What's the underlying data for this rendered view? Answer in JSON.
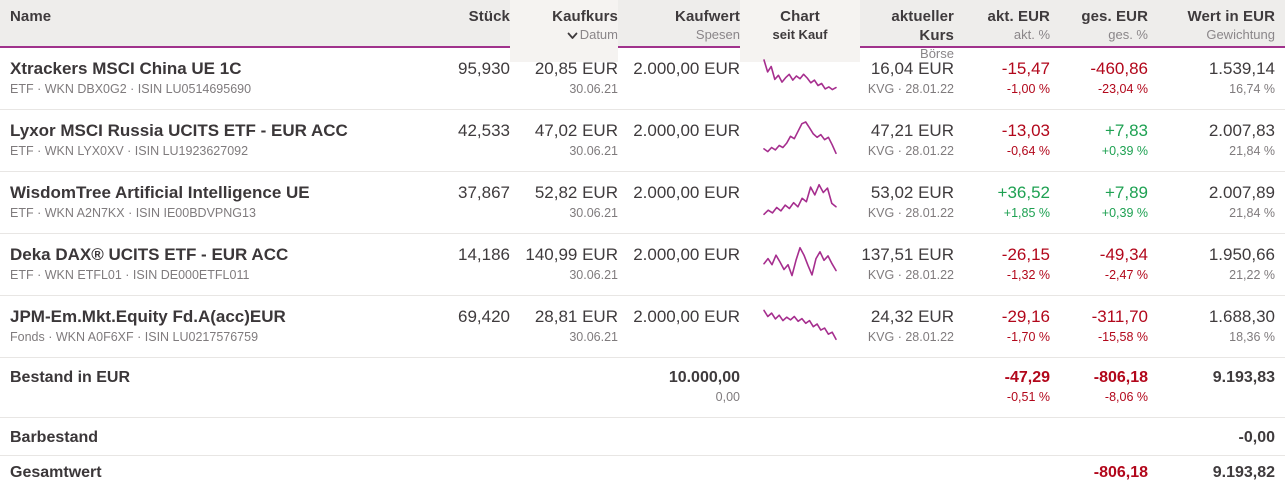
{
  "colors": {
    "accent_line": "#a0328c",
    "spark": "#a62e8e",
    "negative": "#b2071b",
    "positive": "#1ea152",
    "header_bg": "#eeedeb"
  },
  "header": {
    "columns": {
      "name": {
        "label": "Name",
        "sub": ""
      },
      "stueck": {
        "label": "Stück",
        "sub": ""
      },
      "kaufkurs": {
        "label": "Kaufkurs",
        "sub": "Datum",
        "sort_icon": "chevron-down"
      },
      "kaufwert": {
        "label": "Kaufwert",
        "sub": "Spesen"
      },
      "chart": {
        "label": "Chart",
        "sub": "seit Kauf"
      },
      "akt_kurs": {
        "label": "aktueller Kurs",
        "sub": "Börse"
      },
      "akt_eur": {
        "label": "akt. EUR",
        "sub": "akt. %"
      },
      "ges_eur": {
        "label": "ges. EUR",
        "sub": "ges. %"
      },
      "wert": {
        "label": "Wert in EUR",
        "sub": "Gewichtung"
      }
    }
  },
  "rows": [
    {
      "name": "Xtrackers MSCI China UE 1C",
      "details": "ETF · WKN DBX0G2 · ISIN LU0514695690",
      "stueck": "95,930",
      "kaufkurs": "20,85 EUR",
      "kauf_datum": "30.06.21",
      "kaufwert": "2.000,00 EUR",
      "akt_kurs": "16,04 EUR",
      "boerse": "KVG · 28.01.22",
      "akt_eur": "-15,47",
      "akt_pct": "-1,00 %",
      "akt_dir": "neg",
      "ges_eur": "-460,86",
      "ges_pct": "-23,04 %",
      "ges_dir": "neg",
      "wert": "1.539,14",
      "gewichtung": "16,74 %",
      "spark": [
        0.97,
        0.62,
        0.78,
        0.4,
        0.52,
        0.32,
        0.45,
        0.55,
        0.38,
        0.5,
        0.42,
        0.55,
        0.44,
        0.3,
        0.38,
        0.22,
        0.28,
        0.12,
        0.18,
        0.1,
        0.16
      ]
    },
    {
      "name": "Lyxor MSCI Russia UCITS ETF - EUR ACC",
      "details": "ETF · WKN LYX0XV · ISIN LU1923627092",
      "stueck": "42,533",
      "kaufkurs": "47,02 EUR",
      "kauf_datum": "30.06.21",
      "kaufwert": "2.000,00 EUR",
      "akt_kurs": "47,21 EUR",
      "boerse": "KVG · 28.01.22",
      "akt_eur": "-13,03",
      "akt_pct": "-0,64 %",
      "akt_dir": "neg",
      "ges_eur": "+7,83",
      "ges_pct": "+0,39 %",
      "ges_dir": "pos",
      "wert": "2.007,83",
      "gewichtung": "21,84 %",
      "spark": [
        0.18,
        0.1,
        0.22,
        0.15,
        0.28,
        0.22,
        0.35,
        0.55,
        0.48,
        0.7,
        0.92,
        0.97,
        0.8,
        0.62,
        0.52,
        0.6,
        0.45,
        0.52,
        0.3,
        0.05
      ]
    },
    {
      "name": "WisdomTree Artificial Intelligence UE",
      "details": "ETF · WKN A2N7KX · ISIN IE00BDVPNG13",
      "stueck": "37,867",
      "kaufkurs": "52,82 EUR",
      "kauf_datum": "30.06.21",
      "kaufwert": "2.000,00 EUR",
      "akt_kurs": "53,02 EUR",
      "boerse": "KVG · 28.01.22",
      "akt_eur": "+36,52",
      "akt_pct": "+1,85 %",
      "akt_dir": "pos",
      "ges_eur": "+7,89",
      "ges_pct": "+0,39 %",
      "ges_dir": "pos",
      "wert": "2.007,89",
      "gewichtung": "21,84 %",
      "spark": [
        0.08,
        0.2,
        0.12,
        0.28,
        0.18,
        0.35,
        0.25,
        0.42,
        0.3,
        0.55,
        0.45,
        0.88,
        0.65,
        0.95,
        0.72,
        0.85,
        0.4,
        0.3
      ]
    },
    {
      "name": "Deka DAX® UCITS ETF - EUR ACC",
      "details": "ETF · WKN ETFL01 · ISIN DE000ETFL011",
      "stueck": "14,186",
      "kaufkurs": "140,99 EUR",
      "kauf_datum": "30.06.21",
      "kaufwert": "2.000,00 EUR",
      "akt_kurs": "137,51 EUR",
      "boerse": "KVG · 28.01.22",
      "akt_eur": "-26,15",
      "akt_pct": "-1,32 %",
      "akt_dir": "neg",
      "ges_eur": "-49,34",
      "ges_pct": "-2,47 %",
      "ges_dir": "neg",
      "wert": "1.950,66",
      "gewichtung": "21,22 %",
      "spark": [
        0.45,
        0.6,
        0.42,
        0.7,
        0.5,
        0.28,
        0.42,
        0.1,
        0.55,
        0.92,
        0.7,
        0.4,
        0.12,
        0.6,
        0.8,
        0.55,
        0.68,
        0.45,
        0.25
      ]
    },
    {
      "name": "JPM-Em.Mkt.Equity Fd.A(acc)EUR",
      "details": "Fonds · WKN A0F6XF · ISIN LU0217576759",
      "stueck": "69,420",
      "kaufkurs": "28,81 EUR",
      "kauf_datum": "30.06.21",
      "kaufwert": "2.000,00 EUR",
      "akt_kurs": "24,32 EUR",
      "boerse": "KVG · 28.01.22",
      "akt_eur": "-29,16",
      "akt_pct": "-1,70 %",
      "akt_dir": "neg",
      "ges_eur": "-311,70",
      "ges_pct": "-15,58 %",
      "ges_dir": "neg",
      "wert": "1.688,30",
      "gewichtung": "18,36 %",
      "spark": [
        0.9,
        0.72,
        0.82,
        0.65,
        0.76,
        0.6,
        0.7,
        0.62,
        0.72,
        0.58,
        0.66,
        0.52,
        0.6,
        0.42,
        0.5,
        0.32,
        0.38,
        0.2,
        0.26,
        0.05
      ]
    }
  ],
  "totals": {
    "bestand": {
      "label": "Bestand in EUR",
      "kaufwert": "10.000,00",
      "spesen": "0,00",
      "akt_eur": "-47,29",
      "akt_pct": "-0,51 %",
      "akt_dir": "neg",
      "ges_eur": "-806,18",
      "ges_pct": "-8,06 %",
      "ges_dir": "neg",
      "wert": "9.193,83"
    },
    "barbestand": {
      "label": "Barbestand",
      "wert": "-0,00"
    },
    "gesamtwert": {
      "label": "Gesamtwert",
      "ges_eur": "-806,18",
      "ges_dir": "neg",
      "wert": "9.193,82"
    }
  }
}
